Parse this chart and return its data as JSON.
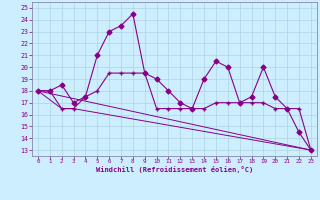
{
  "xlabel": "Windchill (Refroidissement éolien,°C)",
  "bg_color": "#cceeff",
  "grid_color": "#b0d4e0",
  "line_color": "#880088",
  "spine_color": "#8888aa",
  "x_ticks": [
    0,
    1,
    2,
    3,
    4,
    5,
    6,
    7,
    8,
    9,
    10,
    11,
    12,
    13,
    14,
    15,
    16,
    17,
    18,
    19,
    20,
    21,
    22,
    23
  ],
  "y_ticks": [
    13,
    14,
    15,
    16,
    17,
    18,
    19,
    20,
    21,
    22,
    23,
    24,
    25
  ],
  "ylim": [
    12.5,
    25.5
  ],
  "xlim": [
    -0.5,
    23.5
  ],
  "line1_x": [
    0,
    1,
    2,
    3,
    4,
    5,
    6,
    7,
    8,
    9,
    10,
    11,
    12,
    13,
    14,
    15,
    16,
    17,
    18,
    19,
    20,
    21,
    22,
    23
  ],
  "line1_y": [
    18,
    18,
    18.5,
    17,
    17.5,
    21,
    23,
    23.5,
    24.5,
    19.5,
    19,
    18,
    17,
    16.5,
    19,
    20.5,
    20,
    17,
    17.5,
    20,
    17.5,
    16.5,
    14.5,
    13
  ],
  "line2_x": [
    0,
    1,
    2,
    3,
    4,
    5,
    6,
    7,
    8,
    9,
    10,
    11,
    12,
    13,
    14,
    15,
    16,
    17,
    18,
    19,
    20,
    21,
    22,
    23
  ],
  "line2_y": [
    18,
    18,
    16.5,
    16.5,
    17.5,
    18,
    19.5,
    19.5,
    19.5,
    19.5,
    16.5,
    16.5,
    16.5,
    16.5,
    16.5,
    17,
    17,
    17,
    17,
    17,
    16.5,
    16.5,
    16.5,
    13
  ],
  "line3_x": [
    0,
    2,
    3,
    23
  ],
  "line3_y": [
    18,
    16.5,
    16.5,
    13
  ],
  "line4_x": [
    0,
    23
  ],
  "line4_y": [
    18,
    13
  ]
}
